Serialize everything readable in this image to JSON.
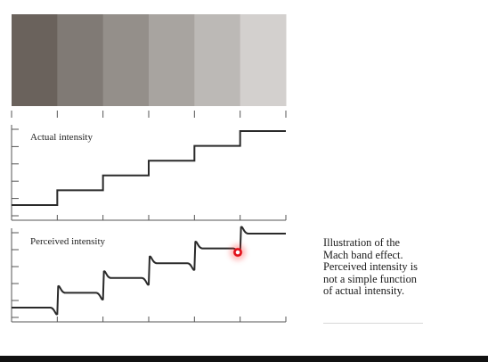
{
  "figure": {
    "bands": {
      "colors": [
        "#6a625c",
        "#807a75",
        "#948f8a",
        "#a8a4a0",
        "#bcb9b6",
        "#d3d0ce"
      ]
    },
    "actual_panel": {
      "label": "Actual intensity",
      "levels": [
        1,
        2,
        3,
        4,
        5,
        6
      ]
    },
    "perceived_panel": {
      "label": "Perceived intensity",
      "levels": [
        1,
        2,
        3,
        4,
        5,
        6
      ],
      "overshoot": 0.55
    },
    "line_color": "#2a2a2a",
    "axis_color": "#555555"
  },
  "caption": {
    "text": "Illustration of the Mach band effect. Perceived intensity is not a simple function of actual intensity."
  },
  "cursor": {
    "color": "#e0101a"
  }
}
